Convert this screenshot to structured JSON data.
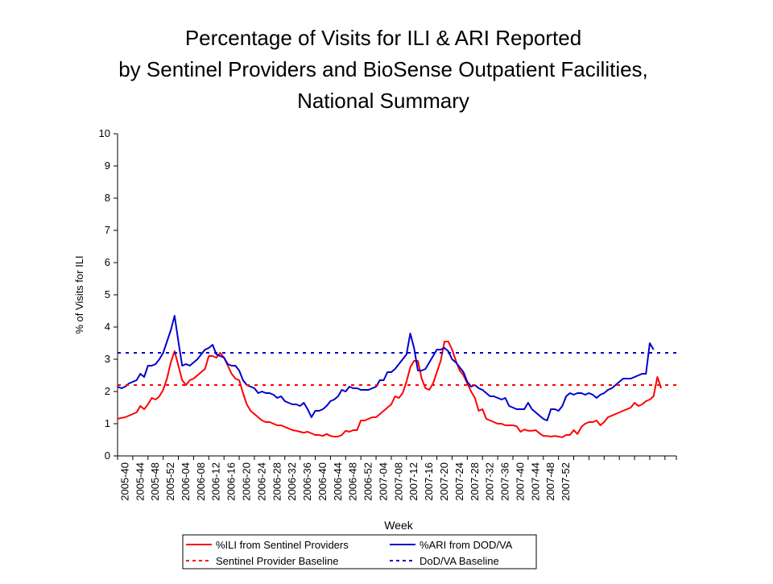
{
  "chart_data": {
    "type": "line",
    "title": [
      "Percentage of Visits for ILI & ARI Reported",
      "by Sentinel Providers and BioSense Outpatient Facilities,",
      "National Summary"
    ],
    "xlabel": "Week",
    "ylabel": "% of Visits for ILI",
    "ylim": [
      0,
      10
    ],
    "yticks": [
      0,
      1,
      2,
      3,
      4,
      5,
      6,
      7,
      8,
      9,
      10
    ],
    "grid": false,
    "legend_position": "bottom",
    "x_tick_labels": [
      "2005-40",
      "2005-44",
      "2005-48",
      "2005-52",
      "2006-04",
      "2006-08",
      "2006-12",
      "2006-16",
      "2006-20",
      "2006-24",
      "2006-28",
      "2006-32",
      "2006-36",
      "2006-40",
      "2006-44",
      "2006-48",
      "2006-52",
      "2007-04",
      "2007-08",
      "2007-12",
      "2007-16",
      "2007-20",
      "2007-24",
      "2007-28",
      "2007-32",
      "2007-36",
      "2007-40",
      "2007-44",
      "2007-48",
      "2007-52"
    ],
    "x_tick_step": 4,
    "num_weeks": 148,
    "series": [
      {
        "name": "%ILI from Sentinel Providers",
        "color": "#ff0000",
        "style": "solid",
        "values": [
          1.15,
          1.18,
          1.2,
          1.25,
          1.3,
          1.35,
          1.55,
          1.45,
          1.6,
          1.8,
          1.75,
          1.85,
          2.05,
          2.4,
          2.9,
          3.25,
          2.8,
          2.35,
          2.2,
          2.35,
          2.4,
          2.5,
          2.6,
          2.7,
          3.1,
          3.1,
          3.05,
          3.2,
          3.05,
          2.8,
          2.55,
          2.4,
          2.35,
          1.95,
          1.6,
          1.4,
          1.3,
          1.2,
          1.1,
          1.05,
          1.05,
          1.0,
          0.95,
          0.95,
          0.9,
          0.85,
          0.8,
          0.78,
          0.75,
          0.72,
          0.75,
          0.7,
          0.65,
          0.65,
          0.62,
          0.68,
          0.62,
          0.6,
          0.6,
          0.65,
          0.78,
          0.75,
          0.8,
          0.8,
          1.1,
          1.1,
          1.15,
          1.2,
          1.2,
          1.3,
          1.4,
          1.5,
          1.6,
          1.85,
          1.8,
          1.95,
          2.3,
          2.75,
          2.95,
          2.95,
          2.4,
          2.1,
          2.05,
          2.25,
          2.6,
          2.95,
          3.55,
          3.55,
          3.3,
          2.95,
          2.65,
          2.5,
          2.25,
          2.0,
          1.8,
          1.4,
          1.45,
          1.15,
          1.1,
          1.05,
          1.0,
          1.0,
          0.95,
          0.95,
          0.95,
          0.92,
          0.75,
          0.82,
          0.78,
          0.78,
          0.8,
          0.7,
          0.62,
          0.62,
          0.6,
          0.62,
          0.6,
          0.58,
          0.65,
          0.65,
          0.8,
          0.68,
          0.9,
          1.0,
          1.05,
          1.05,
          1.1,
          0.95,
          1.05,
          1.2,
          1.25,
          1.3,
          1.35,
          1.4,
          1.45,
          1.5,
          1.65,
          1.55,
          1.6,
          1.7,
          1.75,
          1.85,
          2.45,
          2.1
        ]
      },
      {
        "name": "%ARI from DOD/VA",
        "color": "#0000cc",
        "style": "solid",
        "values": [
          2.15,
          2.1,
          2.15,
          2.25,
          2.3,
          2.35,
          2.55,
          2.45,
          2.8,
          2.8,
          2.85,
          3.0,
          3.2,
          3.55,
          3.9,
          4.35,
          3.55,
          2.8,
          2.85,
          2.8,
          2.9,
          3.0,
          3.15,
          3.3,
          3.35,
          3.45,
          3.15,
          3.1,
          3.05,
          2.85,
          2.8,
          2.8,
          2.65,
          2.35,
          2.2,
          2.15,
          2.1,
          1.95,
          2.0,
          1.95,
          1.95,
          1.9,
          1.8,
          1.85,
          1.7,
          1.65,
          1.6,
          1.6,
          1.55,
          1.65,
          1.45,
          1.2,
          1.4,
          1.4,
          1.45,
          1.55,
          1.7,
          1.75,
          1.85,
          2.05,
          2.0,
          2.15,
          2.1,
          2.1,
          2.05,
          2.05,
          2.05,
          2.1,
          2.15,
          2.35,
          2.35,
          2.6,
          2.6,
          2.7,
          2.85,
          3.0,
          3.15,
          3.8,
          3.35,
          2.65,
          2.65,
          2.7,
          2.9,
          3.1,
          3.3,
          3.3,
          3.35,
          3.25,
          3.0,
          2.9,
          2.75,
          2.6,
          2.3,
          2.15,
          2.2,
          2.1,
          2.05,
          1.95,
          1.85,
          1.85,
          1.8,
          1.75,
          1.8,
          1.55,
          1.5,
          1.45,
          1.45,
          1.45,
          1.65,
          1.45,
          1.35,
          1.25,
          1.15,
          1.1,
          1.45,
          1.45,
          1.4,
          1.55,
          1.85,
          1.95,
          1.9,
          1.95,
          1.95,
          1.9,
          1.95,
          1.9,
          1.8,
          1.9,
          1.95,
          2.05,
          2.1,
          2.2,
          2.3,
          2.4,
          2.4,
          2.4,
          2.45,
          2.5,
          2.55,
          2.55,
          3.5,
          3.3
        ]
      },
      {
        "name": "Sentinel Provider Baseline",
        "color": "#ff0000",
        "style": "dashed",
        "constant": 2.2
      },
      {
        "name": "DoD/VA Baseline",
        "color": "#0000cc",
        "style": "dashed",
        "constant": 3.2
      }
    ]
  }
}
